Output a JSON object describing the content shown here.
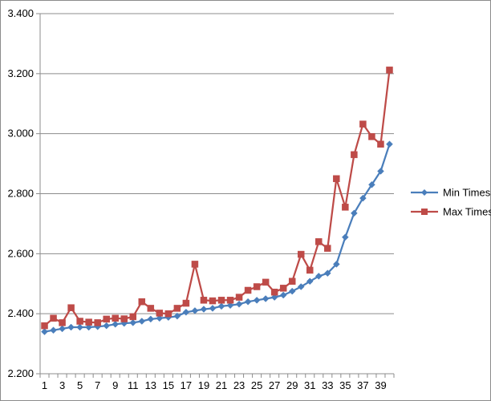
{
  "chart_data": {
    "type": "line",
    "title": "",
    "xlabel": "",
    "ylabel": "",
    "ylim": [
      2.2,
      3.4
    ],
    "y_ticks": [
      "2.200",
      "2.400",
      "2.600",
      "2.800",
      "3.000",
      "3.200",
      "3.400"
    ],
    "y_tick_values": [
      2.2,
      2.4,
      2.6,
      2.8,
      3.0,
      3.2,
      3.4
    ],
    "x": [
      1,
      2,
      3,
      4,
      5,
      6,
      7,
      8,
      9,
      10,
      11,
      12,
      13,
      14,
      15,
      16,
      17,
      18,
      19,
      20,
      21,
      22,
      23,
      24,
      25,
      26,
      27,
      28,
      29,
      30,
      31,
      32,
      33,
      34,
      35,
      36,
      37,
      38,
      39,
      40
    ],
    "x_tick_labels": [
      "1",
      "3",
      "5",
      "7",
      "9",
      "11",
      "13",
      "15",
      "17",
      "19",
      "21",
      "23",
      "25",
      "27",
      "29",
      "31",
      "33",
      "35",
      "37",
      "39"
    ],
    "x_tick_values": [
      1,
      3,
      5,
      7,
      9,
      11,
      13,
      15,
      17,
      19,
      21,
      23,
      25,
      27,
      29,
      31,
      33,
      35,
      37,
      39
    ],
    "grid": "horizontal",
    "legend_position": "right",
    "series": [
      {
        "name": "Min Times",
        "color": "#4a7ebb",
        "marker": "diamond",
        "values": [
          2.34,
          2.345,
          2.35,
          2.355,
          2.355,
          2.355,
          2.357,
          2.36,
          2.365,
          2.368,
          2.37,
          2.375,
          2.382,
          2.385,
          2.388,
          2.392,
          2.405,
          2.41,
          2.415,
          2.418,
          2.425,
          2.428,
          2.432,
          2.44,
          2.445,
          2.45,
          2.455,
          2.462,
          2.475,
          2.49,
          2.508,
          2.525,
          2.535,
          2.565,
          2.655,
          2.735,
          2.785,
          2.83,
          2.875,
          2.965
        ]
      },
      {
        "name": "Max Times",
        "color": "#be4b48",
        "marker": "square",
        "values": [
          2.36,
          2.385,
          2.37,
          2.42,
          2.375,
          2.372,
          2.37,
          2.382,
          2.385,
          2.383,
          2.39,
          2.44,
          2.418,
          2.402,
          2.4,
          2.418,
          2.435,
          2.565,
          2.445,
          2.443,
          2.445,
          2.445,
          2.455,
          2.478,
          2.49,
          2.505,
          2.472,
          2.485,
          2.508,
          2.598,
          2.545,
          2.64,
          2.618,
          2.85,
          2.755,
          2.93,
          3.032,
          2.99,
          2.965,
          3.212
        ]
      }
    ]
  }
}
